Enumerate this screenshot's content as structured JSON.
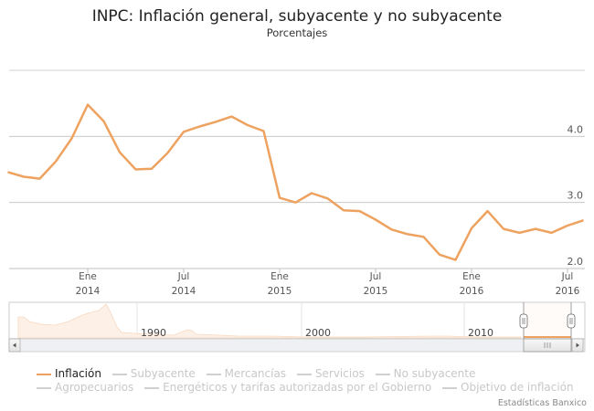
{
  "title": "INPC: Inflación general, subyacente y no subyacente",
  "subtitle": "Porcentajes",
  "colors": {
    "inflacion": "#eea260",
    "grid": "#c0c0c0",
    "legend_inactive": "#c8c8c8"
  },
  "chart_data": {
    "type": "line",
    "title": "INPC: Inflación general, subyacente y no subyacente",
    "subtitle": "Porcentajes",
    "xlabel": "",
    "ylabel": "",
    "ylim": [
      2.0,
      5.0
    ],
    "y_ticks": [
      "2.0",
      "3.0",
      "4.0"
    ],
    "grid": true,
    "legend_position": "bottom",
    "x_ticks": [
      {
        "month": "Ene",
        "year": "2014",
        "date": "2014-01"
      },
      {
        "month": "Jul",
        "year": "2014",
        "date": "2014-07"
      },
      {
        "month": "Ene",
        "year": "2015",
        "date": "2015-01"
      },
      {
        "month": "Jul",
        "year": "2015",
        "date": "2015-07"
      },
      {
        "month": "Ene",
        "year": "2016",
        "date": "2016-01"
      },
      {
        "month": "Jul",
        "year": "2016",
        "date": "2016-07"
      }
    ],
    "x": [
      "2013-08",
      "2013-09",
      "2013-10",
      "2013-11",
      "2013-12",
      "2014-01",
      "2014-02",
      "2014-03",
      "2014-04",
      "2014-05",
      "2014-06",
      "2014-07",
      "2014-08",
      "2014-09",
      "2014-10",
      "2014-11",
      "2014-12",
      "2015-01",
      "2015-02",
      "2015-03",
      "2015-04",
      "2015-05",
      "2015-06",
      "2015-07",
      "2015-08",
      "2015-09",
      "2015-10",
      "2015-11",
      "2015-12",
      "2016-01",
      "2016-02",
      "2016-03",
      "2016-04",
      "2016-05",
      "2016-06",
      "2016-07",
      "2016-08"
    ],
    "series": [
      {
        "name": "Inflación",
        "visible": true,
        "values": [
          3.46,
          3.39,
          3.36,
          3.62,
          3.97,
          4.48,
          4.23,
          3.76,
          3.5,
          3.51,
          3.75,
          4.07,
          4.15,
          4.22,
          4.3,
          4.17,
          4.08,
          3.07,
          3.0,
          3.14,
          3.06,
          2.88,
          2.87,
          2.74,
          2.59,
          2.52,
          2.48,
          2.21,
          2.13,
          2.61,
          2.87,
          2.6,
          2.54,
          2.6,
          2.54,
          2.65,
          2.73
        ]
      },
      {
        "name": "Subyacente",
        "visible": false
      },
      {
        "name": "Mercancías",
        "visible": false
      },
      {
        "name": "Servicios",
        "visible": false
      },
      {
        "name": "No subyacente",
        "visible": false
      },
      {
        "name": "Agropecuarios",
        "visible": false
      },
      {
        "name": "Energéticos y tarifas autorizadas por el Gobierno",
        "visible": false
      },
      {
        "name": "Objetivo de inflación",
        "visible": false
      }
    ],
    "navigator": {
      "labels": [
        "1990",
        "2000",
        "2010"
      ]
    }
  },
  "credits": "Estadísticas Banxico"
}
